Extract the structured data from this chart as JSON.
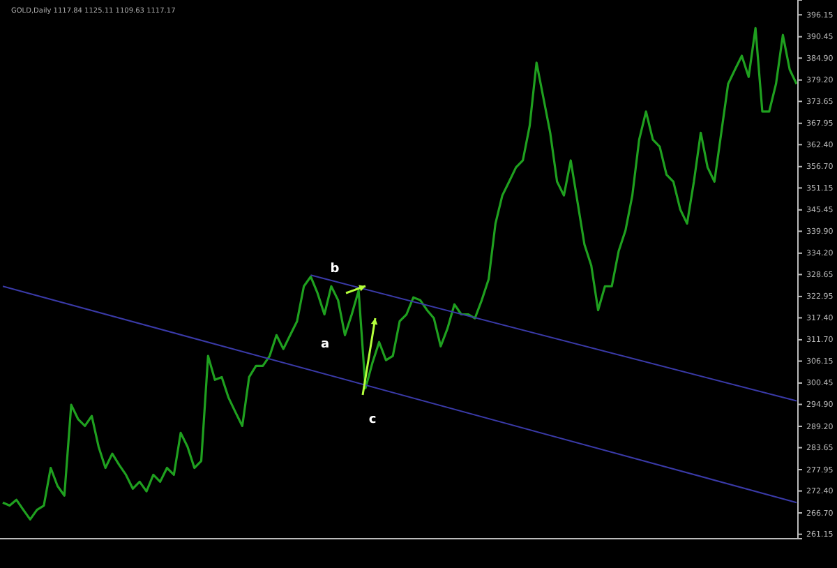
{
  "chart_data": {
    "type": "line",
    "title": "GOLD,Daily  1117.84 1125.11 1109.63 1117.17",
    "categories": [
      null,
      null,
      null,
      null,
      null,
      null,
      null,
      null,
      null,
      null,
      null,
      null,
      null,
      null,
      null,
      null,
      null,
      null,
      null,
      null,
      null,
      null,
      null,
      null,
      null,
      null,
      null,
      null,
      null,
      null,
      null,
      null,
      null,
      null,
      null,
      null,
      null,
      null,
      null,
      null,
      null,
      null,
      null,
      null,
      null,
      null,
      null,
      null,
      null,
      null,
      null,
      null,
      null,
      null,
      null,
      null,
      null,
      null,
      null,
      null,
      null,
      null,
      null,
      null,
      null,
      null,
      null,
      null,
      null,
      null,
      null,
      null,
      null,
      null,
      null,
      null,
      null,
      null,
      null,
      null,
      null,
      null,
      null,
      null,
      null,
      null,
      null,
      null,
      null,
      null,
      null,
      null,
      null,
      null,
      null,
      null,
      null,
      null,
      null,
      null,
      null,
      null,
      null,
      null,
      null,
      null,
      null,
      null,
      null,
      null,
      null,
      null,
      null,
      null,
      null,
      null,
      null
    ],
    "series": [
      {
        "color": "#1fa01f",
        "values": [
          269.4,
          268.6,
          270.1,
          267.5,
          265.0,
          267.5,
          268.6,
          278.4,
          273.7,
          271.2,
          294.8,
          291.1,
          289.3,
          291.9,
          283.9,
          278.4,
          282.1,
          279.2,
          276.6,
          273.0,
          274.8,
          272.3,
          276.6,
          274.8,
          278.4,
          276.6,
          287.5,
          283.9,
          278.4,
          280.2,
          307.5,
          301.3,
          302.0,
          296.6,
          292.9,
          289.3,
          302.0,
          304.9,
          304.9,
          307.5,
          312.9,
          309.3,
          312.9,
          316.5,
          325.6,
          328.1,
          323.8,
          318.3,
          325.6,
          322.0,
          312.9,
          318.3,
          324.5,
          299.1,
          305.6,
          311.1,
          306.4,
          307.5,
          316.5,
          318.3,
          322.7,
          322.0,
          319.4,
          317.3,
          310.0,
          314.7,
          320.9,
          318.3,
          318.3,
          317.3,
          322.0,
          327.4,
          341.9,
          349.2,
          352.8,
          356.5,
          358.3,
          367.3,
          383.7,
          374.6,
          365.5,
          352.8,
          349.2,
          358.3,
          347.4,
          336.5,
          331.0,
          319.4,
          325.6,
          325.6,
          334.7,
          340.1,
          349.2,
          363.7,
          371.0,
          363.7,
          361.9,
          354.6,
          352.8,
          345.6,
          341.9,
          352.8,
          365.5,
          356.5,
          352.8,
          365.5,
          378.2,
          381.9,
          385.5,
          380.0,
          392.7,
          371.0,
          371.0,
          378.2,
          390.9,
          381.9,
          378.2
        ]
      },
      {
        "color": "#3a3aa8",
        "values": [
          325.6,
          null,
          null,
          null,
          null,
          null,
          null,
          null,
          null,
          null,
          null,
          null,
          null,
          null,
          null,
          null,
          null,
          null,
          null,
          null,
          null,
          null,
          null,
          null,
          null,
          null,
          null,
          null,
          null,
          null,
          null,
          null,
          null,
          null,
          null,
          null,
          null,
          null,
          null,
          null,
          null,
          null,
          null,
          null,
          null,
          null,
          null,
          null,
          null,
          null,
          null,
          null,
          null,
          null,
          null,
          null,
          null,
          null,
          null,
          null,
          null,
          null,
          null,
          null,
          null,
          null,
          null,
          null,
          null,
          null,
          null,
          null,
          null,
          null,
          null,
          null,
          null,
          null,
          null,
          null,
          null,
          null,
          null,
          null,
          null,
          null,
          null,
          null,
          null,
          null,
          null,
          null,
          null,
          null,
          null,
          null,
          null,
          null,
          null,
          null,
          null,
          null,
          null,
          null,
          null,
          null,
          null,
          null,
          null,
          null,
          null,
          null,
          null,
          null,
          null,
          null,
          269.4
        ]
      },
      {
        "color": "#3a3aa8",
        "values": [
          null,
          null,
          null,
          null,
          null,
          null,
          null,
          null,
          null,
          null,
          null,
          null,
          null,
          null,
          null,
          null,
          null,
          null,
          null,
          null,
          null,
          null,
          null,
          null,
          null,
          null,
          null,
          null,
          null,
          null,
          null,
          null,
          null,
          null,
          null,
          null,
          null,
          null,
          null,
          null,
          null,
          null,
          null,
          null,
          null,
          328.5,
          null,
          null,
          null,
          null,
          null,
          null,
          null,
          null,
          null,
          null,
          null,
          null,
          null,
          null,
          null,
          null,
          null,
          null,
          null,
          null,
          null,
          null,
          null,
          null,
          null,
          null,
          null,
          null,
          null,
          null,
          null,
          null,
          null,
          null,
          null,
          null,
          null,
          null,
          null,
          null,
          null,
          null,
          null,
          null,
          null,
          null,
          null,
          null,
          null,
          null,
          null,
          null,
          null,
          null,
          null,
          null,
          null,
          null,
          null,
          null,
          null,
          null,
          null,
          null,
          null,
          null,
          null,
          null,
          null,
          null,
          295.8
        ]
      }
    ],
    "ylim": [
      260,
      400
    ],
    "yticks": [
      {
        "value": 261.15,
        "label": "261.15"
      },
      {
        "value": 266.7,
        "label": "266.70"
      },
      {
        "value": 272.4,
        "label": "272.40"
      },
      277.95,
      283.65,
      {
        "value": 289.2,
        "label": "289.20"
      },
      {
        "value": 294.9,
        "label": "294.90"
      },
      300.45,
      306.15,
      {
        "value": 311.7,
        "label": "311.70"
      },
      {
        "value": 317.4,
        "label": "317.40"
      },
      322.95,
      328.65,
      {
        "value": 334.2,
        "label": "334.20"
      },
      {
        "value": 339.9,
        "label": "339.90"
      },
      345.45,
      351.15,
      {
        "value": 356.7,
        "label": "356.70"
      },
      {
        "value": 362.4,
        "label": "362.40"
      },
      367.95,
      373.65,
      {
        "value": 379.2,
        "label": "379.20"
      },
      {
        "value": 384.9,
        "label": "384.90"
      },
      390.45,
      396.15
    ],
    "grid": false,
    "annotations": [
      "a",
      "b",
      "c"
    ]
  }
}
